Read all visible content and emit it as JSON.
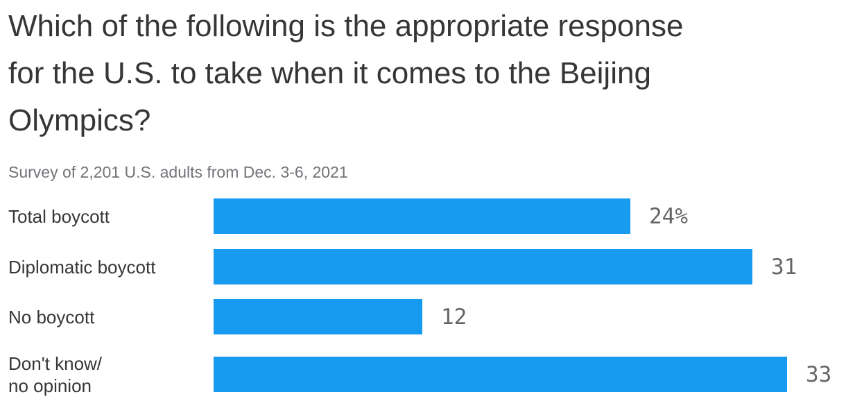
{
  "title": {
    "lines": [
      "Which of the following is the appropriate response",
      "for the U.S. to take when it comes to the Beijing",
      "Olympics?"
    ]
  },
  "subtitle": "Survey of 2,201 U.S. adults from Dec. 3-6, 2021",
  "colors": {
    "bar": "#179BF0",
    "title_text": "#363639",
    "subtitle_text": "#757178",
    "value_text": "#66666a",
    "background": "#FFFFFF"
  },
  "chart_data": {
    "type": "bar",
    "orientation": "horizontal",
    "title": "Which of the following is the appropriate response for the U.S. to take when it comes to the Beijing Olympics?",
    "subtitle": "Survey of 2,201 U.S. adults from Dec. 3-6, 2021",
    "categories": [
      "Total boycott",
      "Diplomatic boycott",
      "No boycott",
      "Don't know/\nno opinion"
    ],
    "values": [
      24,
      31,
      12,
      33
    ],
    "value_labels": [
      "24%",
      "31",
      "12",
      "33"
    ],
    "unit": "percent of respondents",
    "xlim": [
      0,
      33
    ],
    "bar_color": "#179BF0",
    "grid": false,
    "legend": "none",
    "value_label_position": "right-of-bar"
  }
}
